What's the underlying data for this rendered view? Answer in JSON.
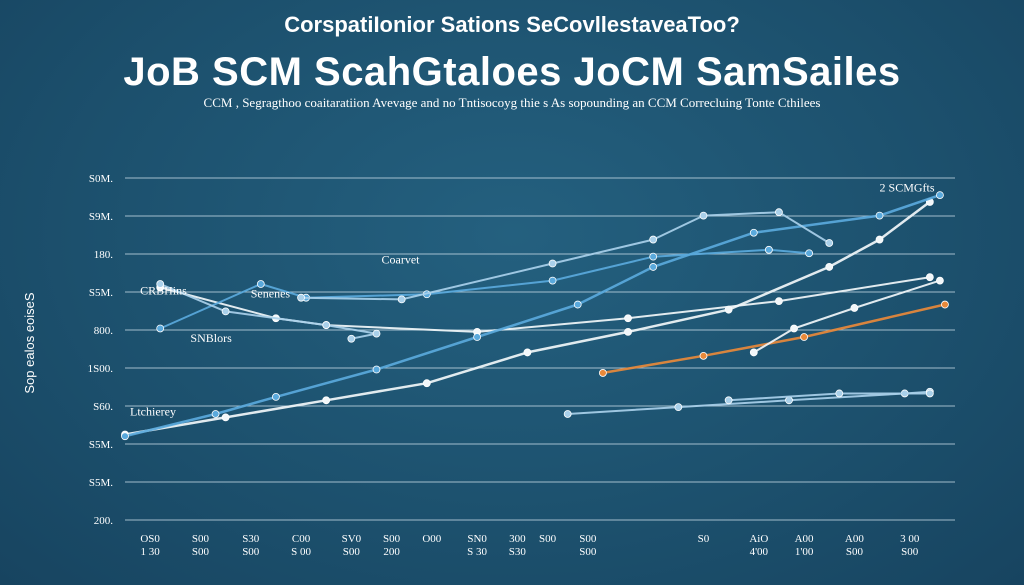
{
  "supertitle": "CorspatiIonior Sations SeCovllestaveaToo?",
  "title": "JoB SCM ScahGtaloes JoCM SamSailes",
  "subtitle": "CCM , Segragthoo coaitaratiion Avevage and no Tntisocoyg thie s As sopounding an CCM Correcluing Tonte Cthilees",
  "ylabel": "Sop ealos eoiseS",
  "colors": {
    "background": "#1e5474",
    "grid": "#cfe1ec",
    "white_series": "#f2f7fa",
    "blue_series": "#5aa9dc",
    "light_series": "#a9d0ea",
    "orange_series": "#e8893a"
  },
  "chart_data": {
    "type": "line",
    "title": "JoB SCM ScahGtaloes JoCM SamSailes",
    "xlabel": "",
    "ylabel": "Sop ealos eoiseS",
    "ylim": [
      0,
      10
    ],
    "grid": true,
    "y_tick_labels": [
      "200.",
      "S5M.",
      "S5M.",
      "S60.",
      "1S00.",
      "800.",
      "S5M.",
      "180.",
      "S9M.",
      "S0M."
    ],
    "x_ticks": [
      {
        "pos": 0.5,
        "top": "OS0",
        "bottom": "1 30"
      },
      {
        "pos": 1.5,
        "top": "S00",
        "bottom": "S00"
      },
      {
        "pos": 2.5,
        "top": "S30",
        "bottom": "S00"
      },
      {
        "pos": 3.5,
        "top": "C00",
        "bottom": "S 00"
      },
      {
        "pos": 4.5,
        "top": "SV0",
        "bottom": "S00"
      },
      {
        "pos": 5.3,
        "top": "S00",
        "bottom": "200"
      },
      {
        "pos": 6.1,
        "top": "O00",
        "bottom": ""
      },
      {
        "pos": 7.0,
        "top": "SN0",
        "bottom": "S 30"
      },
      {
        "pos": 7.8,
        "top": "300",
        "bottom": "S30"
      },
      {
        "pos": 8.4,
        "top": "S00",
        "bottom": ""
      },
      {
        "pos": 9.2,
        "top": "S00",
        "bottom": "S00"
      },
      {
        "pos": 11.5,
        "top": "S0",
        "bottom": ""
      },
      {
        "pos": 12.6,
        "top": "AiO",
        "bottom": "4'00"
      },
      {
        "pos": 13.5,
        "top": "A00",
        "bottom": "1'00"
      },
      {
        "pos": 14.5,
        "top": "A00",
        "bottom": "S00"
      },
      {
        "pos": 15.6,
        "top": "3 00",
        "bottom": "S00"
      }
    ],
    "annotations": [
      {
        "text": "2 SCMGfts",
        "x": 15.0,
        "y": 9.6
      },
      {
        "text": "Coarvet",
        "x": 5.1,
        "y": 7.5
      },
      {
        "text": "CRBHins",
        "x": 0.3,
        "y": 6.6
      },
      {
        "text": "Senenes",
        "x": 2.5,
        "y": 6.5
      },
      {
        "text": "SNBlors",
        "x": 1.3,
        "y": 5.2
      },
      {
        "text": "Ltchierey",
        "x": 0.1,
        "y": 3.05
      }
    ],
    "series": [
      {
        "name": "white-main",
        "color": "white_series",
        "width": 2.5,
        "points": [
          [
            0,
            2.5
          ],
          [
            2,
            3
          ],
          [
            4,
            3.5
          ],
          [
            6,
            4
          ],
          [
            8,
            4.9
          ],
          [
            10,
            5.5
          ],
          [
            12,
            6.15
          ],
          [
            14,
            7.4
          ],
          [
            15,
            8.2
          ],
          [
            16,
            9.3
          ]
        ]
      },
      {
        "name": "white-secondary",
        "color": "white_series",
        "width": 2,
        "points": [
          [
            0.7,
            6.8
          ],
          [
            3,
            5.9
          ],
          [
            4,
            5.7
          ],
          [
            7,
            5.5
          ],
          [
            10,
            5.9
          ],
          [
            13,
            6.4
          ],
          [
            16,
            7.1
          ]
        ]
      },
      {
        "name": "blue-rising",
        "color": "blue_series",
        "width": 2.5,
        "points": [
          [
            0,
            2.45
          ],
          [
            1.8,
            3.1
          ],
          [
            3,
            3.6
          ],
          [
            5,
            4.4
          ],
          [
            7,
            5.35
          ],
          [
            9,
            6.3
          ],
          [
            10.5,
            7.4
          ],
          [
            12.5,
            8.4
          ],
          [
            15,
            8.9
          ],
          [
            16.2,
            9.5
          ]
        ]
      },
      {
        "name": "blue-middle",
        "color": "blue_series",
        "width": 2,
        "points": [
          [
            0.7,
            5.6
          ],
          [
            2.7,
            6.9
          ],
          [
            3.6,
            6.5
          ],
          [
            6,
            6.6
          ],
          [
            8.5,
            7.0
          ],
          [
            10.5,
            7.7
          ],
          [
            12.8,
            7.9
          ],
          [
            13.6,
            7.8
          ]
        ]
      },
      {
        "name": "light-falling",
        "color": "light_series",
        "width": 2,
        "points": [
          [
            0.7,
            6.9
          ],
          [
            2,
            6.1
          ],
          [
            4,
            5.7
          ],
          [
            5,
            5.45
          ],
          [
            4.5,
            5.3
          ]
        ]
      },
      {
        "name": "light-middle",
        "color": "light_series",
        "width": 2,
        "points": [
          [
            3.5,
            6.5
          ],
          [
            5.5,
            6.45
          ],
          [
            8.5,
            7.5
          ],
          [
            10.5,
            8.2
          ],
          [
            11.5,
            8.9
          ],
          [
            13,
            9.0
          ],
          [
            14,
            8.1
          ]
        ]
      },
      {
        "name": "light-lower",
        "color": "light_series",
        "width": 2,
        "points": [
          [
            8.8,
            3.1
          ],
          [
            11,
            3.3
          ],
          [
            13.2,
            3.5
          ],
          [
            15.5,
            3.7
          ],
          [
            16,
            3.75
          ]
        ]
      },
      {
        "name": "light-flat",
        "color": "light_series",
        "width": 2,
        "points": [
          [
            12,
            3.5
          ],
          [
            14.2,
            3.7
          ],
          [
            16,
            3.7
          ]
        ]
      },
      {
        "name": "orange",
        "color": "orange_series",
        "width": 2.5,
        "points": [
          [
            9.5,
            4.3
          ],
          [
            11.5,
            4.8
          ],
          [
            13.5,
            5.35
          ],
          [
            16.3,
            6.3
          ]
        ]
      },
      {
        "name": "white-orange-tail",
        "color": "white_series",
        "width": 2,
        "points": [
          [
            12.5,
            4.9
          ],
          [
            13.3,
            5.6
          ],
          [
            14.5,
            6.2
          ],
          [
            16.2,
            7.0
          ]
        ]
      }
    ]
  }
}
